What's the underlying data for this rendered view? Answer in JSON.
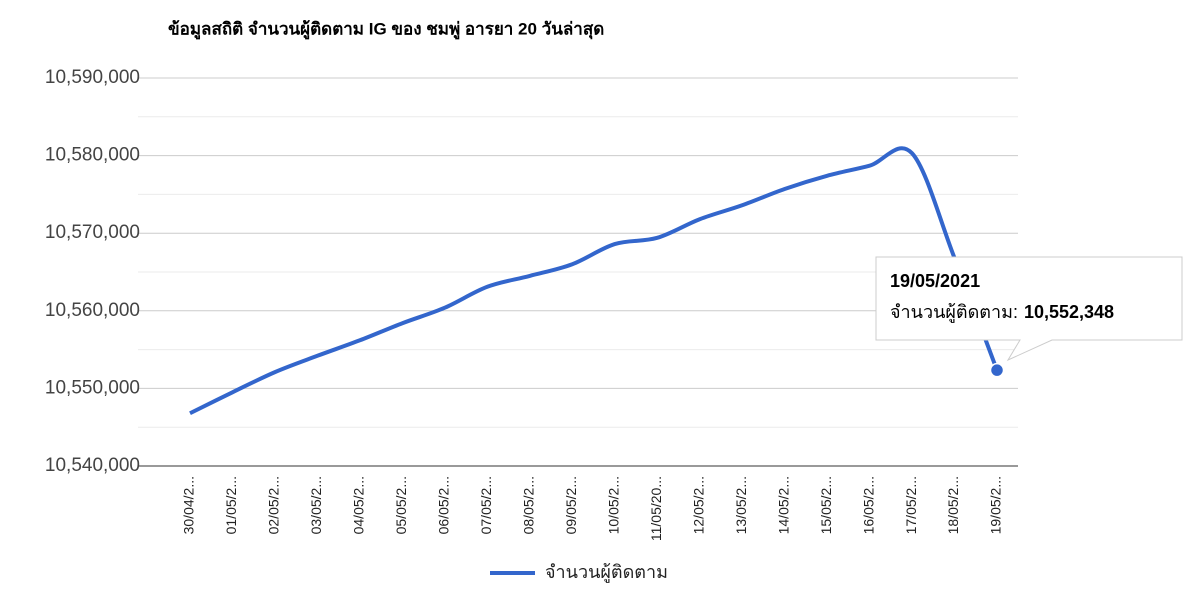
{
  "chart_data": {
    "type": "line",
    "title": "ข้อมูลสถิติ จำนวนผู้ติดตาม IG ของ ชมพู่ อารยา 20 วันล่าสุด",
    "categories": [
      "30/04/2...",
      "01/05/2...",
      "02/05/2...",
      "03/05/2...",
      "04/05/2...",
      "05/05/2...",
      "06/05/2...",
      "07/05/2...",
      "08/05/2...",
      "09/05/2...",
      "10/05/2...",
      "11/05/20...",
      "12/05/2...",
      "13/05/2...",
      "14/05/2...",
      "15/05/2...",
      "16/05/2...",
      "17/05/2...",
      "18/05/2...",
      "19/05/2..."
    ],
    "series": [
      {
        "name": "จำนวนผู้ติดตาม",
        "color": "#3366cc",
        "values": [
          10546800,
          10549500,
          10552100,
          10554200,
          10556200,
          10558400,
          10560400,
          10563100,
          10564500,
          10566000,
          10568600,
          10569400,
          10571800,
          10573600,
          10575700,
          10577400,
          10578700,
          10580300,
          10566800,
          10552348
        ]
      }
    ],
    "ylim": [
      10540000,
      10590000
    ],
    "yticks": [
      {
        "value": 10540000,
        "label": "10,540,000"
      },
      {
        "value": 10550000,
        "label": "10,550,000"
      },
      {
        "value": 10560000,
        "label": "10,560,000"
      },
      {
        "value": 10570000,
        "label": "10,570,000"
      },
      {
        "value": 10580000,
        "label": "10,580,000"
      },
      {
        "value": 10590000,
        "label": "10,590,000"
      }
    ],
    "minor_yticks": [
      10545000,
      10555000,
      10565000,
      10575000,
      10585000
    ],
    "grid": true,
    "legend": "bottom",
    "tooltip": {
      "index": 19,
      "title": "19/05/2021",
      "label": "จำนวนผู้ติดตาม:",
      "value_label": "10,552,348"
    }
  }
}
